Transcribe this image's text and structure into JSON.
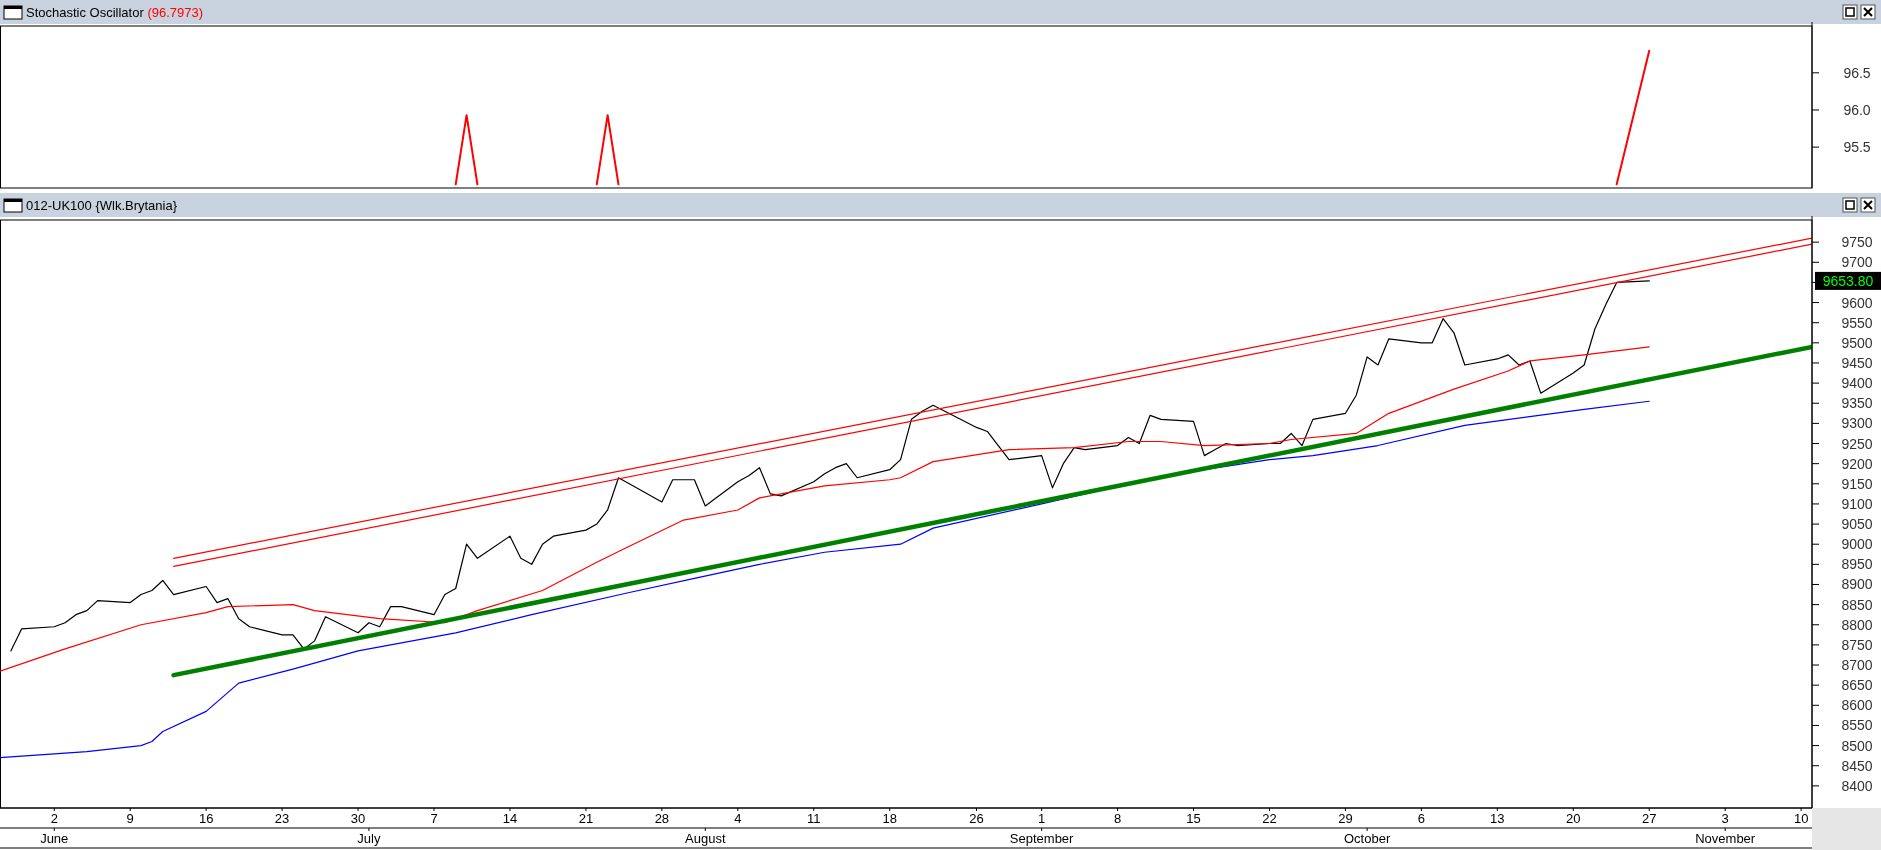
{
  "chart_data": [
    {
      "type": "line",
      "title": "Stochastic Oscillator",
      "subtitle": "(96.7973)",
      "tick_labels": "y",
      "series": [
        {
          "color": "#ff0000",
          "x": [
            "--07-09",
            "--07-10",
            "--07-11",
            "--07-16",
            "--07-22",
            "--07-23",
            "--07-24",
            "--08-01",
            "--10-24",
            "--10-27"
          ],
          "values": [
            95.0,
            95.93,
            95.0,
            null,
            95.0,
            95.93,
            95.0,
            null,
            95.0,
            96.7973
          ]
        }
      ],
      "xlim": [
        "--05-28",
        "--11-11"
      ],
      "ylim": [
        94.95,
        97.13
      ],
      "yticks": [
        {
          "value": 95.5,
          "label": "95.5"
        },
        {
          "value": 96,
          "label": "96.0"
        },
        {
          "value": 96.5,
          "label": "96.5"
        }
      ]
    },
    {
      "type": "line",
      "title": "012-UK100 {Wlk.Brytania}",
      "series": [
        {
          "color": "#000000",
          "x": [
            "--05-29",
            "--05-30",
            "--06-02",
            "--06-03",
            "--06-04",
            "--06-05",
            "--06-06",
            "--06-09",
            "--06-10",
            "--06-11",
            "--06-12",
            "--06-13",
            "--06-16",
            "--06-17",
            "--06-18",
            "--06-19",
            "--06-20",
            "--06-23",
            "--06-24",
            "--06-25",
            "--06-26",
            "--06-27",
            "--06-30",
            "--07-01",
            "--07-02",
            "--07-03",
            "--07-04",
            "--07-07",
            "--07-08",
            "--07-09",
            "--07-10",
            "--07-11",
            "--07-14",
            "--07-15",
            "--07-16",
            "--07-17",
            "--07-18",
            "--07-21",
            "--07-22",
            "--07-23",
            "--07-24",
            "--07-25",
            "--07-28",
            "--07-29",
            "--07-30",
            "--07-31",
            "--08-01",
            "--08-04",
            "--08-05",
            "--08-06",
            "--08-07",
            "--08-08",
            "--08-11",
            "--08-12",
            "--08-13",
            "--08-14",
            "--08-15",
            "--08-18",
            "--08-19",
            "--08-20",
            "--08-21",
            "--08-22",
            "--08-26",
            "--08-27",
            "--08-28",
            "--08-29",
            "--09-01",
            "--09-02",
            "--09-03",
            "--09-04",
            "--09-05",
            "--09-08",
            "--09-09",
            "--09-10",
            "--09-11",
            "--09-12",
            "--09-15",
            "--09-16",
            "--09-17",
            "--09-18",
            "--09-19",
            "--09-22",
            "--09-23",
            "--09-24",
            "--09-25",
            "--09-26",
            "--09-29",
            "--09-30",
            "--10-01",
            "--10-02",
            "--10-03",
            "--10-06",
            "--10-07",
            "--10-08",
            "--10-09",
            "--10-10",
            "--10-13",
            "--10-14",
            "--10-15",
            "--10-16",
            "--10-17",
            "--10-20",
            "--10-21",
            "--10-22",
            "--10-23",
            "--10-24",
            "--10-27"
          ],
          "values": [
            8735,
            8790,
            8795,
            8805,
            8825,
            8835,
            8860,
            8855,
            8875,
            8885,
            8910,
            8875,
            8895,
            8855,
            8865,
            8815,
            8795,
            8775,
            8775,
            8740,
            8760,
            8820,
            8780,
            8805,
            8795,
            8845,
            8845,
            8825,
            8875,
            8890,
            9000,
            8965,
            9020,
            8965,
            8950,
            9000,
            9020,
            9035,
            9050,
            9085,
            9165,
            9150,
            9105,
            9160,
            9160,
            9160,
            9095,
            9155,
            9170,
            9190,
            9125,
            9120,
            9155,
            9175,
            9190,
            9200,
            9165,
            9185,
            9210,
            9310,
            9330,
            9345,
            9290,
            9280,
            9245,
            9210,
            9220,
            9140,
            9200,
            9240,
            9235,
            9245,
            9265,
            9250,
            9320,
            9310,
            9305,
            9220,
            9235,
            9250,
            9245,
            9250,
            9250,
            9275,
            9245,
            9310,
            9325,
            9370,
            9465,
            9445,
            9510,
            9500,
            9500,
            9560,
            9525,
            9445,
            9460,
            9470,
            9445,
            9455,
            9375,
            9425,
            9445,
            9535,
            9595,
            9650,
            9653.8
          ]
        },
        {
          "color": "#ff0000",
          "x": [
            "--05-28",
            "--06-03",
            "--06-10",
            "--06-16",
            "--06-18",
            "--06-24",
            "--06-26",
            "--07-02",
            "--07-08",
            "--07-11",
            "--07-17",
            "--07-22",
            "--07-25",
            "--07-30",
            "--08-04",
            "--08-06",
            "--08-12",
            "--08-18",
            "--08-19",
            "--08-22",
            "--08-29",
            "--09-04",
            "--09-09",
            "--09-12",
            "--09-16",
            "--09-22",
            "--09-24",
            "--09-30",
            "--10-03",
            "--10-09",
            "--10-14",
            "--10-16",
            "--10-21",
            "--10-27"
          ],
          "values": [
            8685,
            8740,
            8800,
            8830,
            8845,
            8850,
            8835,
            8815,
            8805,
            8835,
            8885,
            8955,
            8995,
            9060,
            9085,
            9115,
            9145,
            9160,
            9165,
            9205,
            9235,
            9240,
            9255,
            9255,
            9245,
            9250,
            9260,
            9275,
            9325,
            9385,
            9430,
            9455,
            9470,
            9490
          ]
        },
        {
          "color": "#0000ff",
          "x": [
            "--05-28",
            "--06-05",
            "--06-10",
            "--06-11",
            "--06-12",
            "--06-16",
            "--06-19",
            "--06-24",
            "--06-30",
            "--07-09",
            "--07-16",
            "--07-25",
            "--07-31",
            "--08-06",
            "--08-12",
            "--08-19",
            "--08-22",
            "--09-01",
            "--09-09",
            "--09-16",
            "--09-22",
            "--09-26",
            "--10-02",
            "--10-10",
            "--10-21",
            "--10-27"
          ],
          "values": [
            8470,
            8485,
            8500,
            8510,
            8535,
            8585,
            8655,
            8690,
            8735,
            8780,
            8825,
            8880,
            8915,
            8950,
            8980,
            9000,
            9040,
            9100,
            9150,
            9185,
            9210,
            9220,
            9245,
            9295,
            9335,
            9355
          ]
        },
        {
          "color": "#008000",
          "x": [
            "--06-13",
            "--11-11"
          ],
          "values": [
            8675,
            9490
          ]
        },
        {
          "color": "#ff0000",
          "x": [
            "--06-13",
            "--11-11"
          ],
          "values": [
            8965,
            9760
          ]
        },
        {
          "color": "#ff0000",
          "x": [
            "--06-13",
            "--11-11"
          ],
          "values": [
            8945,
            9745
          ]
        }
      ],
      "xlim": [
        "--05-28",
        "--11-11"
      ],
      "ylim": [
        8345,
        9805
      ],
      "yticks": [
        8400,
        8450,
        8500,
        8550,
        8600,
        8650,
        8700,
        8750,
        8800,
        8850,
        8900,
        8950,
        9000,
        9050,
        9100,
        9150,
        9200,
        9250,
        9300,
        9350,
        9400,
        9450,
        9500,
        9550,
        9600,
        {
          "value": 9650,
          "label": null
        },
        9700,
        9750
      ],
      "xticks": [
        {
          "value": "--06-02",
          "label": "2"
        },
        {
          "value": "--06-09",
          "label": "9"
        },
        {
          "value": "--06-16",
          "label": "16"
        },
        {
          "value": "--06-23",
          "label": "23"
        },
        {
          "value": "--06-30",
          "label": "30"
        },
        {
          "value": "--07-07",
          "label": "7"
        },
        {
          "value": "--07-14",
          "label": "14"
        },
        {
          "value": "--07-21",
          "label": "21"
        },
        {
          "value": "--07-28",
          "label": "28"
        },
        {
          "value": "--08-04",
          "label": "4"
        },
        {
          "value": "--08-11",
          "label": "11"
        },
        {
          "value": "--08-18",
          "label": "18"
        },
        {
          "value": "--08-26",
          "label": "26"
        },
        {
          "value": "--09-01",
          "label": "1"
        },
        {
          "value": "--09-08",
          "label": "8"
        },
        {
          "value": "--09-15",
          "label": "15"
        },
        {
          "value": "--09-22",
          "label": "22"
        },
        {
          "value": "--09-29",
          "label": "29"
        },
        {
          "value": "--10-06",
          "label": "6"
        },
        {
          "value": "--10-13",
          "label": "13"
        },
        {
          "value": "--10-20",
          "label": "20"
        },
        {
          "value": "--10-27",
          "label": "27"
        },
        {
          "value": "--11-03",
          "label": "3"
        },
        {
          "value": "--11-10",
          "label": "10"
        }
      ],
      "x2lim": [
        "--05-28",
        "--11-11"
      ],
      "x2ticks": [
        {
          "value": "--06-02",
          "label": "June"
        },
        {
          "value": "--07-01",
          "label": "July"
        },
        {
          "value": "--08-01",
          "label": "August"
        },
        {
          "value": "--09-01",
          "label": "September"
        },
        {
          "value": "--10-01",
          "label": "October"
        },
        {
          "value": "--11-03",
          "label": "November"
        }
      ],
      "annotations": [
        "9653.80"
      ]
    }
  ]
}
